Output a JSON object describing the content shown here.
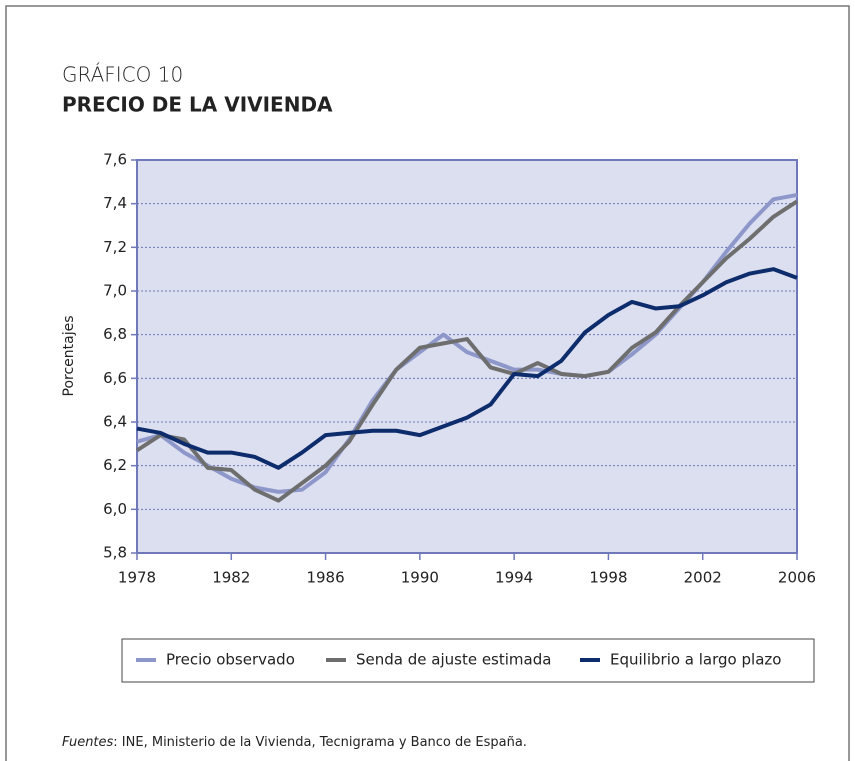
{
  "chart_data": {
    "type": "line",
    "kicker": "GRÁFICO 10",
    "title": "PRECIO DE LA VIVIENDA",
    "y_label": "Porcentajes",
    "x": [
      1978,
      1979,
      1980,
      1981,
      1982,
      1983,
      1984,
      1985,
      1986,
      1987,
      1988,
      1989,
      1990,
      1991,
      1992,
      1993,
      1994,
      1995,
      1996,
      1997,
      1998,
      1999,
      2000,
      2001,
      2002,
      2003,
      2004,
      2005,
      2006
    ],
    "xlim": [
      1978,
      2006
    ],
    "xticks": [
      1978,
      1982,
      1986,
      1990,
      1994,
      1998,
      2002,
      2006
    ],
    "ylim": [
      5.8,
      7.6
    ],
    "yticks": [
      {
        "value": 5.8,
        "label": "5,8"
      },
      {
        "value": 6.0,
        "label": "6,0"
      },
      {
        "value": 6.2,
        "label": "6,2"
      },
      {
        "value": 6.4,
        "label": "6,4"
      },
      {
        "value": 6.6,
        "label": "6,6"
      },
      {
        "value": 6.8,
        "label": "6,8"
      },
      {
        "value": 7.0,
        "label": "7,0"
      },
      {
        "value": 7.2,
        "label": "7,2"
      },
      {
        "value": 7.4,
        "label": "7,4"
      },
      {
        "value": 7.6,
        "label": "7,6"
      }
    ],
    "grid": true,
    "legend": "bottom",
    "series": [
      {
        "name": "Precio observado",
        "color": "#8e97c9",
        "values": [
          6.31,
          6.34,
          6.26,
          6.2,
          6.14,
          6.1,
          6.08,
          6.09,
          6.17,
          6.32,
          6.5,
          6.64,
          6.72,
          6.8,
          6.72,
          6.68,
          6.64,
          6.64,
          6.62,
          6.61,
          6.63,
          6.71,
          6.8,
          6.92,
          7.04,
          7.18,
          7.31,
          7.42,
          7.44
        ]
      },
      {
        "name": "Senda de ajuste estimada",
        "color": "#6e6e6e",
        "values": [
          6.27,
          6.34,
          6.32,
          6.19,
          6.18,
          6.09,
          6.04,
          6.12,
          6.2,
          6.31,
          6.48,
          6.64,
          6.74,
          6.76,
          6.78,
          6.65,
          6.62,
          6.67,
          6.62,
          6.61,
          6.63,
          6.74,
          6.81,
          6.93,
          7.04,
          7.15,
          7.24,
          7.34,
          7.41
        ]
      },
      {
        "name": "Equilibrio a largo plazo",
        "color": "#0d2c6c",
        "values": [
          6.37,
          6.35,
          6.3,
          6.26,
          6.26,
          6.24,
          6.19,
          6.26,
          6.34,
          6.35,
          6.36,
          6.36,
          6.34,
          6.38,
          6.42,
          6.48,
          6.62,
          6.61,
          6.68,
          6.81,
          6.89,
          6.95,
          6.92,
          6.93,
          6.98,
          7.04,
          7.08,
          7.1,
          7.06
        ]
      }
    ],
    "note": {
      "label": "Fuentes",
      "text": ": INE, Ministerio de la Vivienda, Tecnigrama y Banco de España."
    }
  }
}
